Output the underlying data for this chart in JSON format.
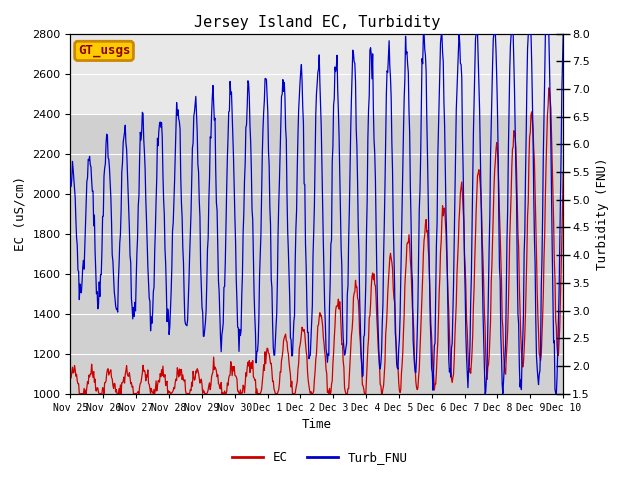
{
  "title": "Jersey Island EC, Turbidity",
  "xlabel": "Time",
  "ylabel_left": "EC (uS/cm)",
  "ylabel_right": "Turbidity (FNU)",
  "ylim_left": [
    1000,
    2800
  ],
  "ylim_right": [
    1.5,
    8.0
  ],
  "yticks_left": [
    1000,
    1200,
    1400,
    1600,
    1800,
    2000,
    2200,
    2400,
    2600,
    2800
  ],
  "yticks_right": [
    1.5,
    2.0,
    2.5,
    3.0,
    3.5,
    4.0,
    4.5,
    5.0,
    5.5,
    6.0,
    6.5,
    7.0,
    7.5,
    8.0
  ],
  "ec_color": "#cc0000",
  "turb_color": "#0000cc",
  "background_color": "#ffffff",
  "inner_bg_dark": "#d0d0d0",
  "inner_bg_light": "#e8e8e8",
  "legend_ec": "EC",
  "legend_turb": "Turb_FNU",
  "annotation_text": "GT_usgs",
  "annotation_bg": "#ffcc00",
  "annotation_border": "#cc8800",
  "title_fontsize": 11,
  "label_fontsize": 9,
  "tick_fontsize": 8,
  "legend_fontsize": 9,
  "num_points": 720
}
